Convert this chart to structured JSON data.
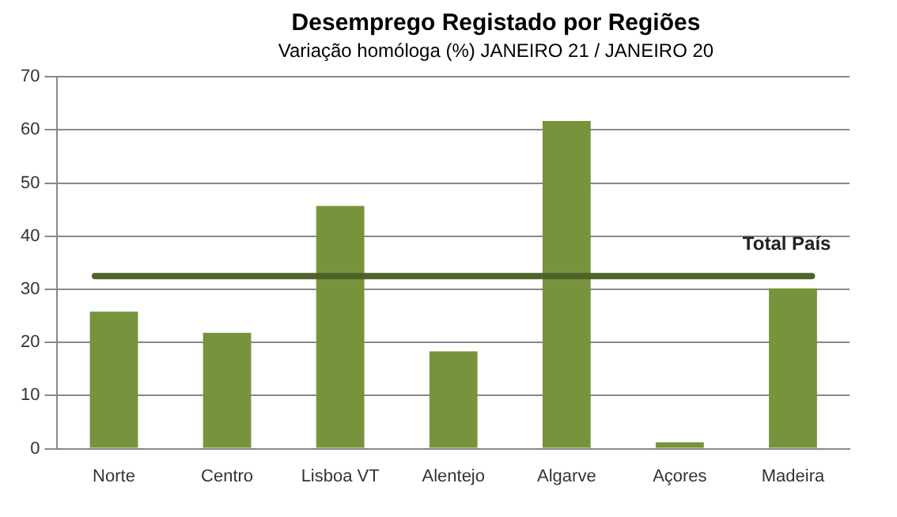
{
  "chart_data": {
    "type": "bar",
    "title": "Desemprego Registado por Regiões",
    "subtitle": "Variação homóloga (%) JANEIRO 21 / JANEIRO 20",
    "categories": [
      "Norte",
      "Centro",
      "Lisboa VT",
      "Alentejo",
      "Algarve",
      "Açores",
      "Madeira"
    ],
    "values": [
      25.8,
      21.8,
      45.7,
      18.3,
      61.7,
      1.2,
      30.2
    ],
    "color": "#77933c",
    "ylim": [
      0,
      70
    ],
    "yticks": [
      0,
      10,
      20,
      30,
      40,
      50,
      60,
      70
    ],
    "grid": "y",
    "ref_lines": [
      {
        "axis": "y",
        "value": 32.5,
        "label": "Total País",
        "color": "#4f6228"
      }
    ]
  }
}
